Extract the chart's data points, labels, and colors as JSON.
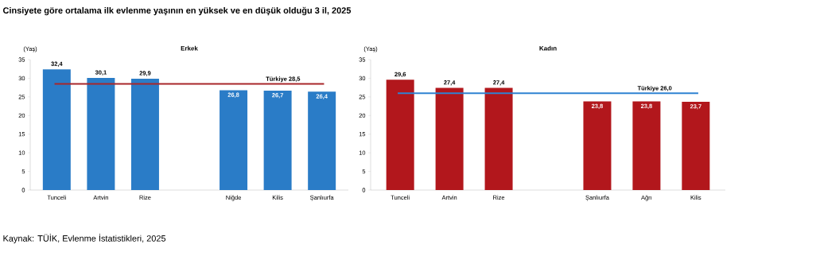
{
  "chart_data": [
    {
      "type": "bar",
      "title": "Erkek",
      "ylabel": "(Yaş)",
      "categories": [
        "Tunceli",
        "Artvin",
        "Rize",
        null,
        "Niğde",
        "Kilis",
        "Şanlıurfa"
      ],
      "values": [
        32.4,
        30.1,
        29.9,
        null,
        26.8,
        26.7,
        26.4
      ],
      "value_labels": [
        "32,4",
        "30,1",
        "29,9",
        null,
        "26,8",
        "26,7",
        "26,4"
      ],
      "color": "#2a7cc7",
      "ylim": [
        0,
        35
      ],
      "yticks": [
        0,
        5,
        10,
        15,
        20,
        25,
        30,
        35
      ],
      "ref_lines": [
        {
          "axis": "y",
          "value": 28.5,
          "label": "Türkiye 28,5",
          "color": "#a8262a"
        }
      ],
      "annotations": [
        "Cinsiyete göre ortalama ilk evlenme yaşının en yüksek ve en düşük olduğu 3 il, 2025",
        "Kaynak: TÜİK, Evlenme İstatistikleri, 2025"
      ]
    },
    {
      "type": "bar",
      "title": "Kadın",
      "ylabel": "(Yaş)",
      "categories": [
        "Tunceli",
        "Artvin",
        "Rize",
        null,
        "Şanlıurfa",
        "Ağrı",
        "Kilis"
      ],
      "values": [
        29.6,
        27.4,
        27.4,
        null,
        23.8,
        23.8,
        23.7
      ],
      "value_labels": [
        "29,6",
        "27,4",
        "27,4",
        null,
        "23,8",
        "23,8",
        "23,7"
      ],
      "color": "#b2171c",
      "ylim": [
        0,
        35
      ],
      "yticks": [
        0,
        5,
        10,
        15,
        20,
        25,
        30,
        35
      ],
      "ref_lines": [
        {
          "axis": "y",
          "value": 26.0,
          "label": "Türkiye 26,0",
          "color": "#2f82d2"
        }
      ]
    }
  ]
}
